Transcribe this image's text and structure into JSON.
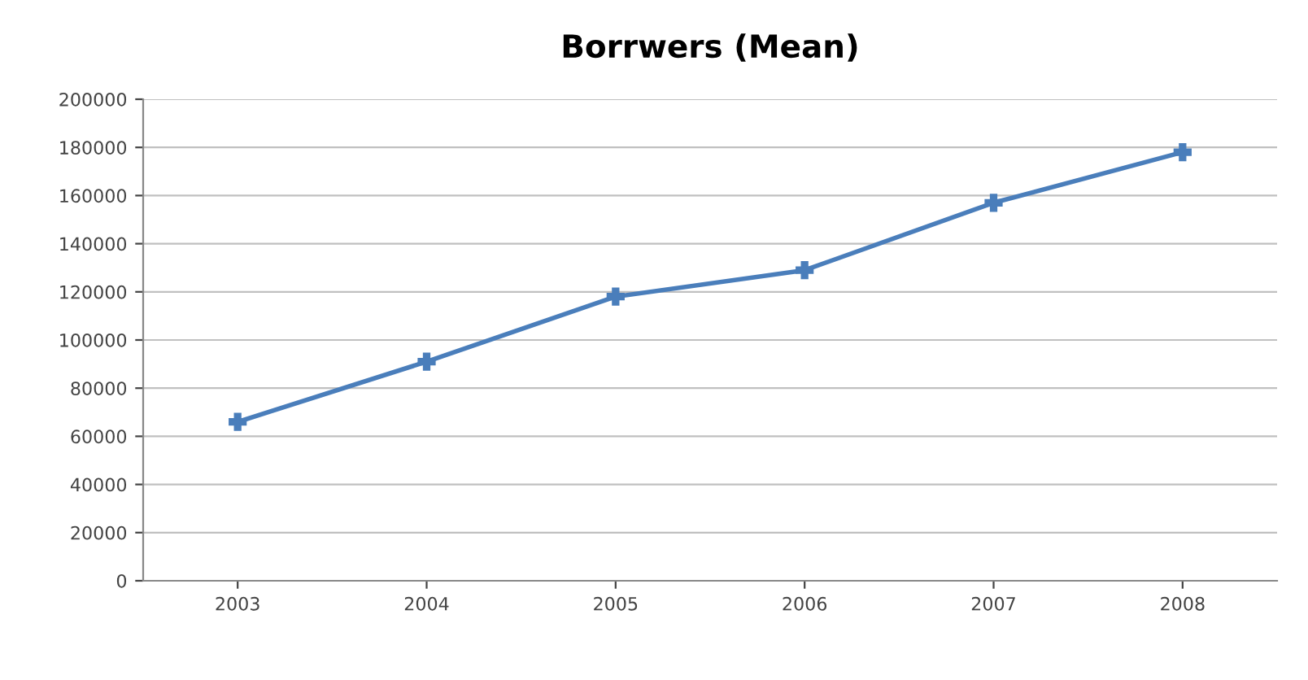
{
  "chart_data": {
    "type": "line",
    "title": "Borrwers (Mean)",
    "categories": [
      "2003",
      "2004",
      "2005",
      "2006",
      "2007",
      "2008"
    ],
    "series": [
      {
        "color": "#4a7ebb",
        "values": [
          66000,
          91000,
          118000,
          129000,
          157000,
          178000
        ]
      }
    ],
    "ylim": [
      0,
      200000
    ],
    "yticks": [
      0,
      20000,
      40000,
      60000,
      80000,
      100000,
      120000,
      140000,
      160000,
      180000,
      200000
    ],
    "grid": "y",
    "legend": false,
    "marker": "cross",
    "line_style": "solid"
  }
}
